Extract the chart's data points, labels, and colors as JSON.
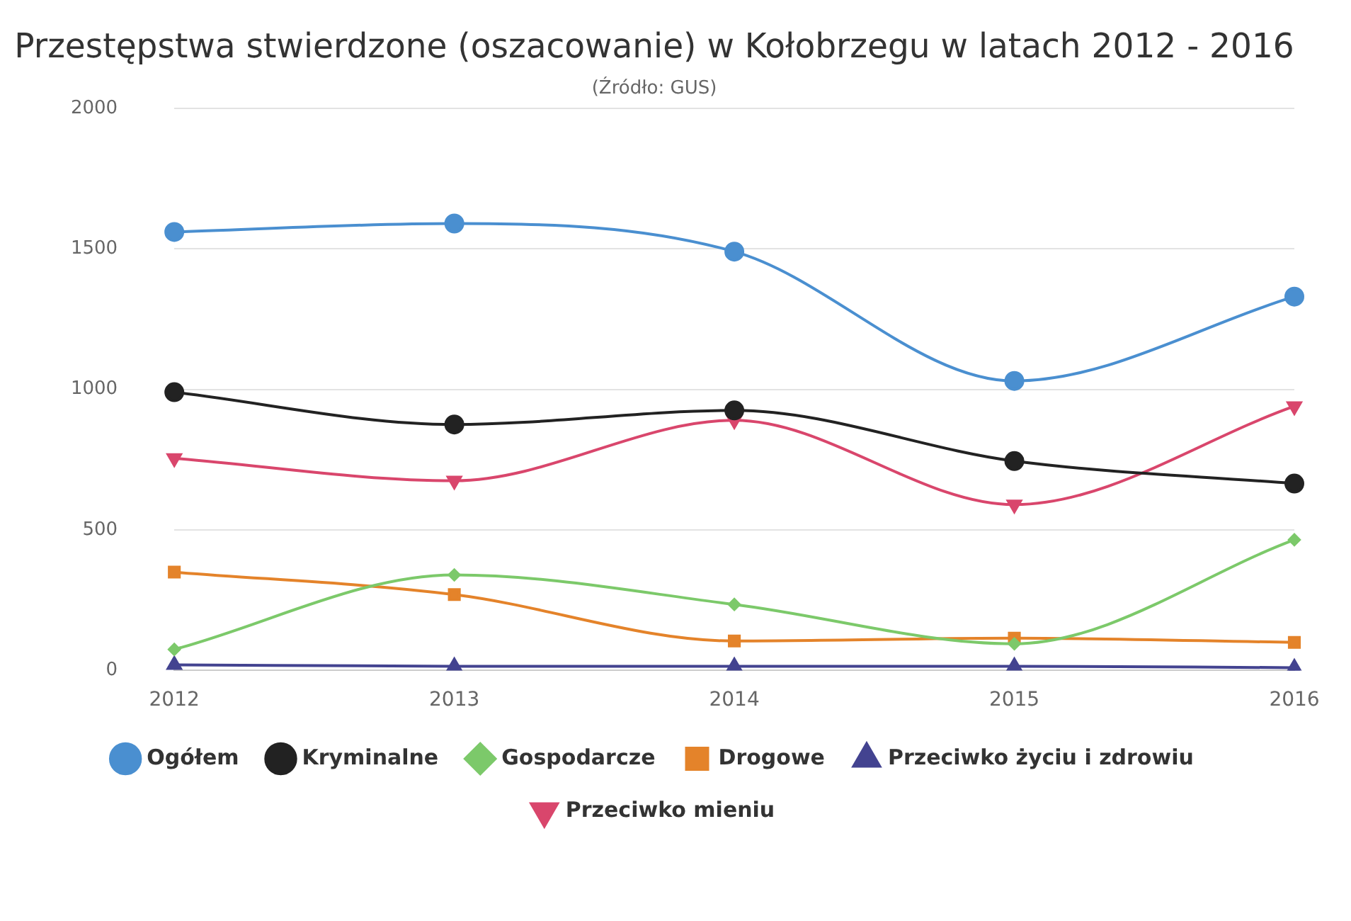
{
  "chart_data": {
    "type": "line",
    "title": "Przestępstwa stwierdzone (oszacowanie) w Kołobrzegu w latach 2012 - 2016",
    "subtitle": "(Źródło: GUS)",
    "categories": [
      "2012",
      "2013",
      "2014",
      "2015",
      "2016"
    ],
    "ylim": [
      0,
      2000
    ],
    "yticks": [
      0,
      500,
      1000,
      1500,
      2000
    ],
    "grid": "y",
    "legend": "bottom",
    "series": [
      {
        "name": "Ogółem",
        "color": "#4a8fd0",
        "marker": "circle",
        "values": [
          1560,
          1590,
          1490,
          1030,
          1330
        ]
      },
      {
        "name": "Kryminalne",
        "color": "#222222",
        "marker": "circle",
        "values": [
          990,
          875,
          925,
          745,
          665
        ]
      },
      {
        "name": "Gospodarcze",
        "color": "#7cc96a",
        "marker": "diamond",
        "values": [
          75,
          340,
          235,
          95,
          465
        ]
      },
      {
        "name": "Drogowe",
        "color": "#e4832a",
        "marker": "square",
        "values": [
          350,
          270,
          105,
          115,
          100
        ]
      },
      {
        "name": "Przeciwko życiu i zdrowiu",
        "color": "#434390",
        "marker": "triangle",
        "values": [
          20,
          15,
          15,
          15,
          10
        ]
      },
      {
        "name": "Przeciwko mieniu",
        "color": "#d9466c",
        "marker": "triangle-down",
        "values": [
          755,
          675,
          890,
          590,
          940
        ]
      }
    ]
  }
}
